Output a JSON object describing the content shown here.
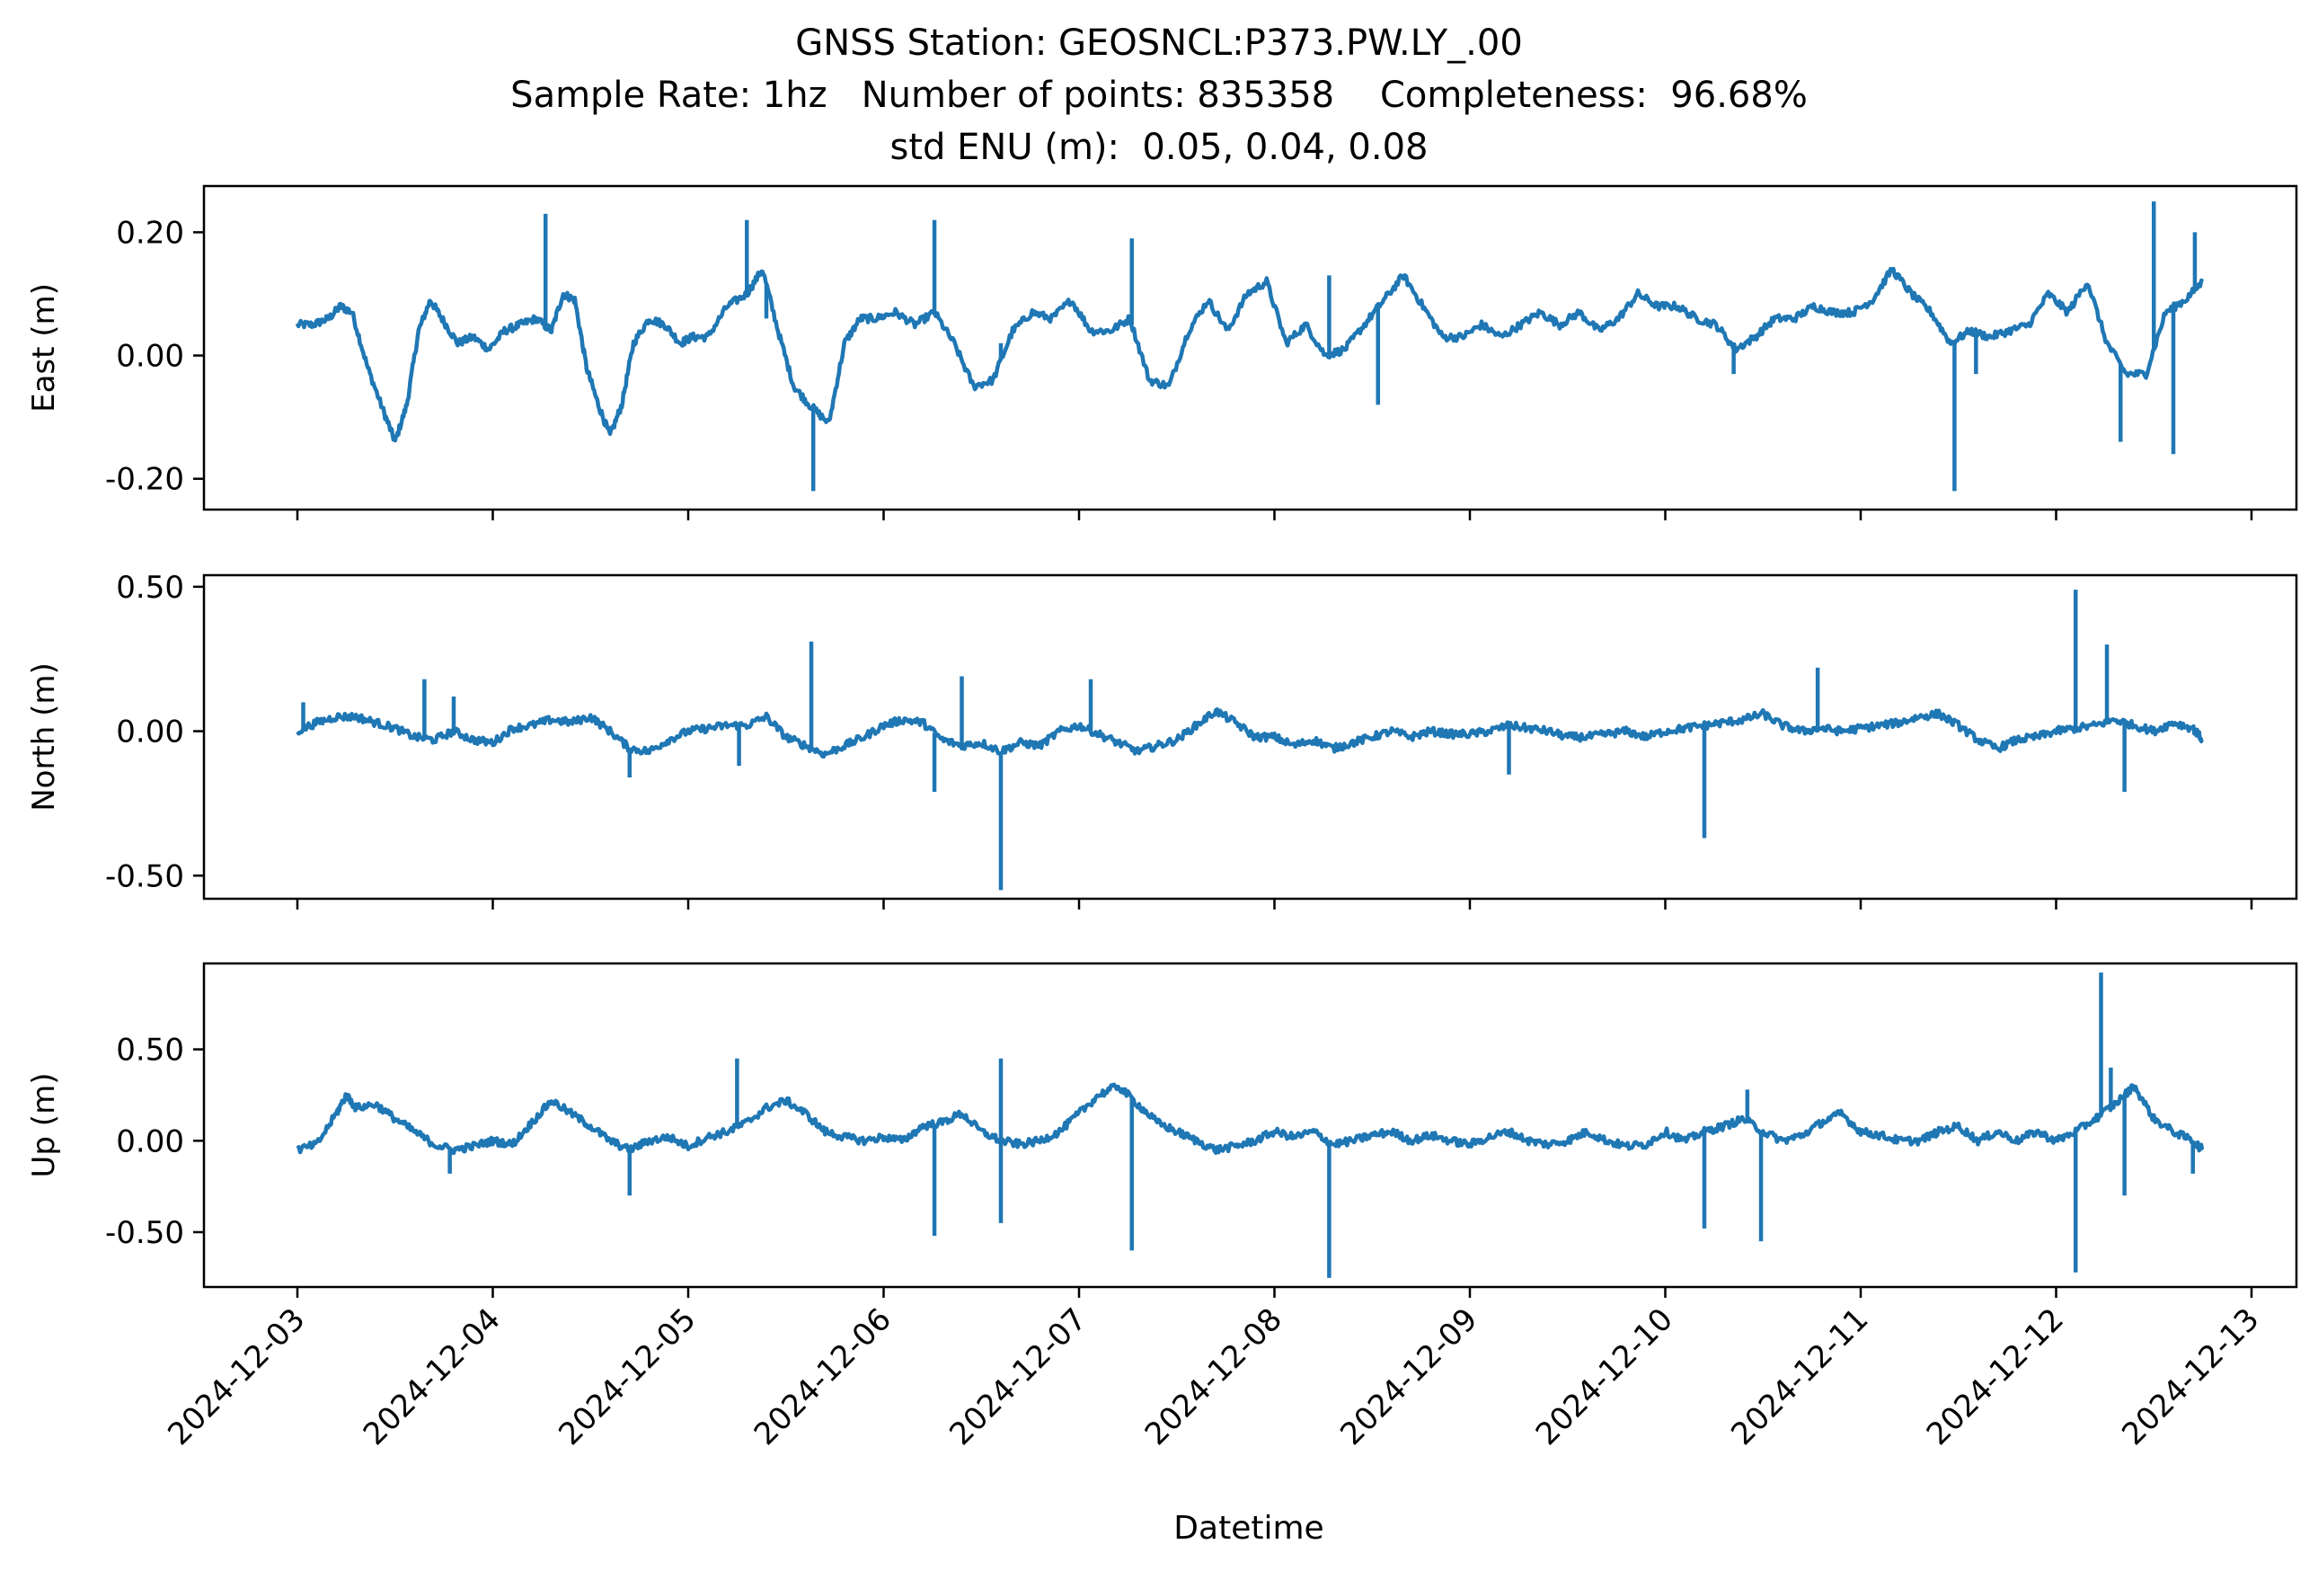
{
  "title_lines": [
    "GNSS Station: GEOSNCL:P373.PW.LY_.00",
    "Sample Rate: 1hz   Number of points: 835358    Completeness:  96.68%",
    "std ENU (m):  0.05, 0.04, 0.08"
  ],
  "chart_data": {
    "type": "line",
    "series_color": "#1f77b4",
    "xlabel": "Datetime",
    "x_tick_labels": [
      "2024-12-03",
      "2024-12-04",
      "2024-12-05",
      "2024-12-06",
      "2024-12-07",
      "2024-12-08",
      "2024-12-09",
      "2024-12-10",
      "2024-12-11",
      "2024-12-12",
      "2024-12-13"
    ],
    "x_range": [
      "2024-12-02T12:30",
      "2024-12-13T07:30"
    ],
    "data_range": [
      "2024-12-03T00:00",
      "2024-12-12T18:00"
    ],
    "subplots": [
      {
        "ylabel": "East (m)",
        "ylim": [
          -0.25,
          0.275
        ],
        "yticks": [
          0.2,
          0.0,
          -0.2
        ],
        "ytick_labels": [
          "0.20",
          "0.00",
          "-0.20"
        ],
        "x_days": [
          0,
          0.08,
          0.16,
          0.22,
          0.28,
          0.36,
          0.44,
          0.5,
          0.56,
          0.62,
          0.68,
          0.74,
          0.82,
          0.9,
          0.98,
          1.06,
          1.14,
          1.22,
          1.3,
          1.36,
          1.42,
          1.48,
          1.54,
          1.6,
          1.66,
          1.72,
          1.8,
          1.88,
          1.96,
          2.02,
          2.1,
          2.2,
          2.3,
          2.38,
          2.46,
          2.54,
          2.62,
          2.72,
          2.8,
          2.88,
          2.96,
          3.06,
          3.16,
          3.26,
          3.36,
          3.46,
          3.56,
          3.66,
          3.76,
          3.86,
          3.96,
          4.06,
          4.16,
          4.26,
          4.36,
          4.46,
          4.56,
          4.66,
          4.76,
          4.86,
          4.96,
          5.06,
          5.16,
          5.26,
          5.36,
          5.46,
          5.56,
          5.66,
          5.76,
          5.86,
          5.96,
          6.06,
          6.16,
          6.26,
          6.36,
          6.46,
          6.56,
          6.66,
          6.76,
          6.86,
          6.96,
          7.06,
          7.16,
          7.26,
          7.36,
          7.46,
          7.56,
          7.66,
          7.76,
          7.86,
          7.96,
          8.06,
          8.16,
          8.26,
          8.36,
          8.46,
          8.56,
          8.66,
          8.76,
          8.86,
          8.96,
          9.06,
          9.16,
          9.26,
          9.36,
          9.46,
          9.56,
          9.66,
          9.75
        ],
        "y": [
          0.05,
          0.05,
          0.06,
          0.08,
          0.07,
          -0.02,
          -0.09,
          -0.14,
          -0.08,
          0.04,
          0.09,
          0.06,
          0.02,
          0.03,
          0.01,
          0.04,
          0.05,
          0.06,
          0.04,
          0.1,
          0.09,
          -0.02,
          -0.08,
          -0.13,
          -0.08,
          0.02,
          0.06,
          0.05,
          0.02,
          0.03,
          0.03,
          0.08,
          0.1,
          0.14,
          0.04,
          -0.05,
          -0.08,
          -0.11,
          0.02,
          0.06,
          0.06,
          0.07,
          0.05,
          0.07,
          0.02,
          -0.05,
          -0.04,
          0.04,
          0.07,
          0.06,
          0.09,
          0.04,
          0.04,
          0.06,
          -0.04,
          -0.05,
          0.04,
          0.09,
          0.04,
          0.1,
          0.12,
          0.02,
          0.05,
          0.0,
          0.01,
          0.05,
          0.09,
          0.13,
          0.08,
          0.03,
          0.03,
          0.05,
          0.03,
          0.05,
          0.07,
          0.05,
          0.07,
          0.04,
          0.06,
          0.1,
          0.08,
          0.08,
          0.06,
          0.05,
          0.01,
          0.03,
          0.06,
          0.06,
          0.08,
          0.07,
          0.07,
          0.09,
          0.14,
          0.1,
          0.07,
          0.02,
          0.04,
          0.03,
          0.04,
          0.05,
          0.1,
          0.07,
          0.12,
          0.02,
          -0.03,
          -0.03,
          0.07,
          0.09,
          0.12
        ],
        "spikes": [
          [
            1.27,
            0.23
          ],
          [
            2.3,
            0.22
          ],
          [
            2.4,
            0.06
          ],
          [
            2.64,
            -0.22
          ],
          [
            2.67,
            -0.1
          ],
          [
            3.26,
            0.22
          ],
          [
            3.6,
            0.02
          ],
          [
            4.27,
            0.19
          ],
          [
            5.28,
            0.13
          ],
          [
            5.53,
            -0.08
          ],
          [
            7.35,
            -0.03
          ],
          [
            8.48,
            -0.22
          ],
          [
            8.59,
            -0.03
          ],
          [
            9.5,
            0.25
          ],
          [
            9.6,
            -0.16
          ],
          [
            9.33,
            -0.14
          ],
          [
            9.71,
            0.2
          ]
        ]
      },
      {
        "ylabel": "North (m)",
        "ylim": [
          -0.58,
          0.54
        ],
        "yticks": [
          0.5,
          0.0,
          -0.5
        ],
        "ytick_labels": [
          "0.50",
          "0.00",
          "-0.50"
        ],
        "x_days": [
          0,
          0.1,
          0.2,
          0.3,
          0.4,
          0.5,
          0.6,
          0.7,
          0.8,
          0.9,
          1.0,
          1.1,
          1.2,
          1.3,
          1.4,
          1.5,
          1.6,
          1.7,
          1.8,
          1.9,
          2.0,
          2.1,
          2.2,
          2.3,
          2.4,
          2.5,
          2.6,
          2.7,
          2.8,
          2.9,
          3.0,
          3.1,
          3.2,
          3.3,
          3.4,
          3.5,
          3.6,
          3.7,
          3.8,
          3.9,
          4.0,
          4.1,
          4.2,
          4.3,
          4.4,
          4.5,
          4.6,
          4.7,
          4.8,
          4.9,
          5.0,
          5.1,
          5.2,
          5.3,
          5.4,
          5.5,
          5.6,
          5.7,
          5.8,
          5.9,
          6.0,
          6.1,
          6.2,
          6.3,
          6.4,
          6.5,
          6.6,
          6.7,
          6.8,
          6.9,
          7.0,
          7.1,
          7.2,
          7.3,
          7.4,
          7.5,
          7.6,
          7.7,
          7.8,
          7.9,
          8.0,
          8.1,
          8.2,
          8.3,
          8.4,
          8.5,
          8.6,
          8.7,
          8.8,
          8.9,
          9.0,
          9.1,
          9.2,
          9.3,
          9.4,
          9.5,
          9.6,
          9.7,
          9.75
        ],
        "y": [
          0.0,
          0.03,
          0.05,
          0.05,
          0.03,
          0.01,
          -0.02,
          -0.03,
          0.0,
          -0.03,
          -0.04,
          0.01,
          0.02,
          0.04,
          0.03,
          0.05,
          0.0,
          -0.06,
          -0.07,
          -0.03,
          0.0,
          0.01,
          0.02,
          0.02,
          0.05,
          -0.02,
          -0.05,
          -0.08,
          -0.05,
          -0.02,
          0.02,
          0.04,
          0.03,
          -0.03,
          -0.05,
          -0.04,
          -0.07,
          -0.04,
          -0.05,
          0.0,
          0.02,
          -0.01,
          -0.04,
          -0.07,
          -0.05,
          -0.03,
          0.02,
          0.07,
          0.03,
          -0.02,
          -0.02,
          -0.05,
          -0.03,
          -0.06,
          -0.04,
          -0.02,
          0.0,
          -0.02,
          0.0,
          -0.01,
          -0.01,
          0.0,
          0.02,
          0.01,
          0.0,
          -0.02,
          -0.02,
          -0.01,
          0.0,
          -0.02,
          0.0,
          0.01,
          0.02,
          0.03,
          0.04,
          0.06,
          0.02,
          0.0,
          0.01,
          0.0,
          0.01,
          0.02,
          0.03,
          0.05,
          0.06,
          0.02,
          -0.03,
          -0.06,
          -0.03,
          -0.02,
          0.0,
          0.01,
          0.02,
          0.04,
          0.02,
          0.0,
          0.03,
          0.01,
          -0.03
        ],
        "spikes": [
          [
            0.03,
            0.1
          ],
          [
            0.65,
            0.18
          ],
          [
            0.8,
            0.12
          ],
          [
            1.7,
            -0.16
          ],
          [
            2.26,
            -0.12
          ],
          [
            2.63,
            0.31
          ],
          [
            3.26,
            -0.21
          ],
          [
            3.4,
            0.19
          ],
          [
            3.6,
            -0.55
          ],
          [
            4.06,
            0.18
          ],
          [
            6.2,
            -0.15
          ],
          [
            7.2,
            -0.37
          ],
          [
            7.78,
            0.22
          ],
          [
            9.1,
            0.49
          ],
          [
            9.26,
            0.3
          ],
          [
            9.35,
            -0.21
          ]
        ]
      },
      {
        "ylabel": "Up (m)",
        "ylim": [
          -0.8,
          0.97
        ],
        "yticks": [
          0.5,
          0.0,
          -0.5
        ],
        "ytick_labels": [
          "0.50",
          "0.00",
          "-0.50"
        ],
        "x_days": [
          0,
          0.1,
          0.2,
          0.25,
          0.3,
          0.4,
          0.5,
          0.6,
          0.7,
          0.8,
          0.9,
          1.0,
          1.1,
          1.2,
          1.3,
          1.4,
          1.5,
          1.6,
          1.7,
          1.8,
          1.9,
          2.0,
          2.1,
          2.2,
          2.3,
          2.4,
          2.5,
          2.6,
          2.7,
          2.8,
          2.9,
          3.0,
          3.1,
          3.2,
          3.3,
          3.4,
          3.5,
          3.6,
          3.7,
          3.8,
          3.9,
          4.0,
          4.1,
          4.2,
          4.3,
          4.4,
          4.5,
          4.6,
          4.7,
          4.8,
          4.9,
          5.0,
          5.1,
          5.2,
          5.3,
          5.4,
          5.5,
          5.6,
          5.7,
          5.8,
          5.9,
          6.0,
          6.1,
          6.2,
          6.3,
          6.4,
          6.5,
          6.6,
          6.7,
          6.8,
          6.9,
          7.0,
          7.1,
          7.2,
          7.3,
          7.4,
          7.5,
          7.6,
          7.7,
          7.8,
          7.9,
          8.0,
          8.1,
          8.2,
          8.3,
          8.4,
          8.5,
          8.6,
          8.7,
          8.8,
          8.9,
          9.0,
          9.1,
          9.2,
          9.3,
          9.4,
          9.5,
          9.6,
          9.7,
          9.75
        ],
        "y": [
          -0.05,
          -0.02,
          0.15,
          0.25,
          0.18,
          0.2,
          0.12,
          0.05,
          -0.02,
          -0.05,
          -0.03,
          0.0,
          -0.02,
          0.1,
          0.22,
          0.15,
          0.08,
          0.0,
          -0.05,
          0.0,
          0.02,
          -0.03,
          0.02,
          0.05,
          0.1,
          0.18,
          0.22,
          0.15,
          0.05,
          0.02,
          0.0,
          0.02,
          0.0,
          0.08,
          0.1,
          0.15,
          0.05,
          0.0,
          -0.02,
          0.0,
          0.05,
          0.15,
          0.25,
          0.3,
          0.2,
          0.1,
          0.05,
          0.0,
          -0.05,
          -0.03,
          0.0,
          0.05,
          0.02,
          0.05,
          -0.02,
          0.0,
          0.03,
          0.05,
          0.0,
          0.03,
          0.0,
          -0.02,
          0.02,
          0.05,
          0.0,
          -0.02,
          0.0,
          0.05,
          0.0,
          -0.03,
          -0.02,
          0.05,
          0.0,
          0.05,
          0.08,
          0.12,
          0.05,
          0.0,
          0.03,
          0.1,
          0.15,
          0.05,
          0.03,
          0.0,
          0.0,
          0.05,
          0.08,
          0.0,
          0.05,
          0.0,
          0.05,
          0.0,
          0.05,
          0.12,
          0.2,
          0.3,
          0.12,
          0.05,
          0.0,
          -0.05
        ],
        "spikes": [
          [
            0.78,
            -0.18
          ],
          [
            1.7,
            -0.3
          ],
          [
            2.25,
            0.45
          ],
          [
            3.26,
            -0.52
          ],
          [
            3.6,
            0.45
          ],
          [
            3.6,
            -0.45
          ],
          [
            4.27,
            -0.6
          ],
          [
            5.28,
            -0.75
          ],
          [
            7.2,
            -0.48
          ],
          [
            7.49,
            -0.55
          ],
          [
            7.42,
            0.28
          ],
          [
            9.1,
            -0.72
          ],
          [
            9.23,
            0.92
          ],
          [
            9.28,
            0.4
          ],
          [
            9.35,
            -0.3
          ],
          [
            9.7,
            -0.18
          ]
        ]
      }
    ]
  }
}
